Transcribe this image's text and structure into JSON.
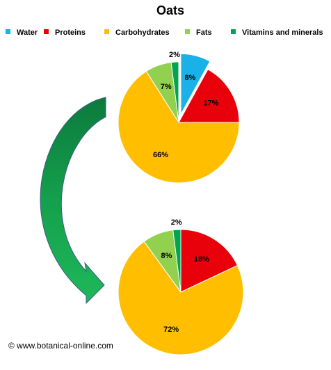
{
  "chart_data": [
    {
      "type": "pie",
      "title": "Oats",
      "categories": [
        "Water",
        "Proteins",
        "Carbohydrates",
        "Fats",
        "Vitamins and minerals"
      ],
      "colors": [
        "#1ab0e8",
        "#e8000b",
        "#ffbf00",
        "#92d050",
        "#00a550"
      ],
      "values": [
        8,
        17,
        66,
        7,
        2
      ],
      "value_labels": [
        "8%",
        "17%",
        "66%",
        "7%",
        "2%"
      ],
      "exploded": [
        true,
        false,
        false,
        false,
        false
      ],
      "legend": "top"
    },
    {
      "type": "pie",
      "values": [
        null,
        18,
        72,
        8,
        2
      ],
      "value_labels": [
        null,
        "18%",
        "72%",
        "8%",
        "2%"
      ]
    }
  ],
  "credit": "© www.botanical-online.com"
}
